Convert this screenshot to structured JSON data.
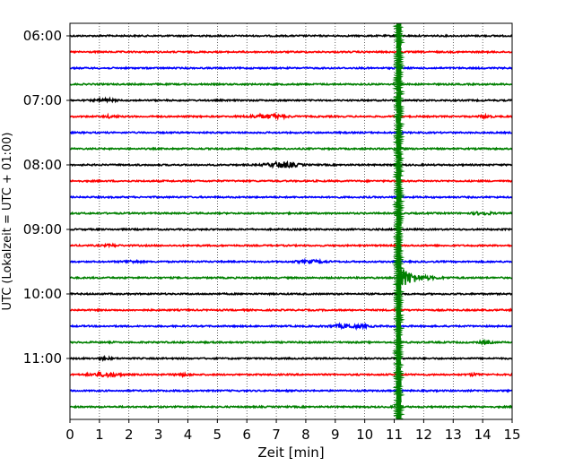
{
  "chart_data": {
    "type": "line",
    "title": "",
    "xlabel": "Zeit  [min]",
    "ylabel": "UTC (Lokalzeit = UTC + 01:00)",
    "xlim": [
      0,
      15
    ],
    "x_ticks": [
      "0",
      "1",
      "2",
      "3",
      "4",
      "5",
      "6",
      "7",
      "8",
      "9",
      "10",
      "11",
      "12",
      "13",
      "14",
      "15"
    ],
    "y_ticks": [
      {
        "label": "06:00",
        "trace": 0
      },
      {
        "label": "07:00",
        "trace": 4
      },
      {
        "label": "08:00",
        "trace": 8
      },
      {
        "label": "09:00",
        "trace": 12
      },
      {
        "label": "10:00",
        "trace": 16
      },
      {
        "label": "11:00",
        "trace": 20
      }
    ],
    "trace_interval_min": 15,
    "trace_count": 24,
    "grid": "vertical dotted",
    "color_cycle": [
      "#000000",
      "#ff0000",
      "#0000ff",
      "#008000"
    ],
    "events": [
      {
        "trace": 4,
        "x": 1.2,
        "amp": 0.3,
        "dur": 0.3
      },
      {
        "trace": 5,
        "x": 1.4,
        "amp": 0.25,
        "dur": 0.2
      },
      {
        "trace": 5,
        "x": 6.7,
        "amp": 0.4,
        "dur": 0.6
      },
      {
        "trace": 5,
        "x": 14.1,
        "amp": 0.25,
        "dur": 0.2
      },
      {
        "trace": 8,
        "x": 7.2,
        "amp": 0.6,
        "dur": 0.5
      },
      {
        "trace": 11,
        "x": 14.0,
        "amp": 0.3,
        "dur": 0.3
      },
      {
        "trace": 13,
        "x": 1.4,
        "amp": 0.2,
        "dur": 0.2
      },
      {
        "trace": 14,
        "x": 2.1,
        "amp": 0.2,
        "dur": 0.3
      },
      {
        "trace": 14,
        "x": 8.2,
        "amp": 0.25,
        "dur": 0.5
      },
      {
        "trace": 18,
        "x": 9.5,
        "amp": 0.35,
        "dur": 0.6
      },
      {
        "trace": 19,
        "x": 14.1,
        "amp": 0.25,
        "dur": 0.2
      },
      {
        "trace": 20,
        "x": 1.2,
        "amp": 0.2,
        "dur": 0.2
      },
      {
        "trace": 21,
        "x": 1.2,
        "amp": 0.4,
        "dur": 0.5
      },
      {
        "trace": 21,
        "x": 3.8,
        "amp": 0.2,
        "dur": 0.3
      },
      {
        "trace": 21,
        "x": 13.7,
        "amp": 0.2,
        "dur": 0.2
      }
    ],
    "earthquake": {
      "x_onset": 11.15,
      "main_trace": 15,
      "saturated_traces": [
        0,
        24
      ],
      "max_amp": 3.0,
      "decay_min": 1.2
    }
  }
}
